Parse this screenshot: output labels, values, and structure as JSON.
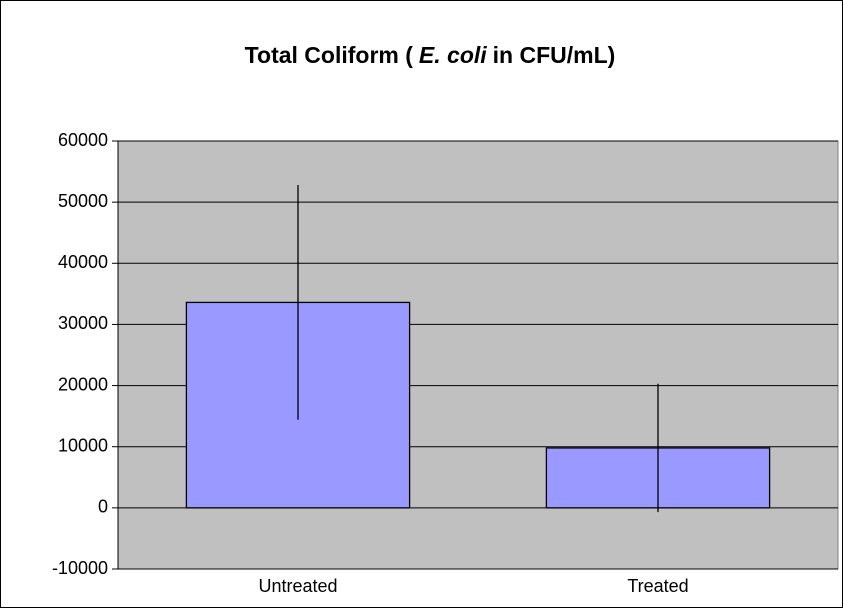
{
  "chart_data": {
    "type": "bar",
    "title": [
      {
        "text": "Total Coliform (",
        "italic": false
      },
      {
        "text": "E. coli",
        "italic": true
      },
      {
        "text": "in CFU/mL)",
        "italic": false
      }
    ],
    "categories": [
      "Untreated",
      "Treated"
    ],
    "values": [
      33600,
      9800
    ],
    "errors": [
      19200,
      10500
    ],
    "color": "#9999ff",
    "plot_background": "#c0c0c0",
    "ylim": [
      -10000,
      60000
    ],
    "yticks": [
      -10000,
      0,
      10000,
      20000,
      30000,
      40000,
      50000,
      60000
    ],
    "grid": true
  }
}
